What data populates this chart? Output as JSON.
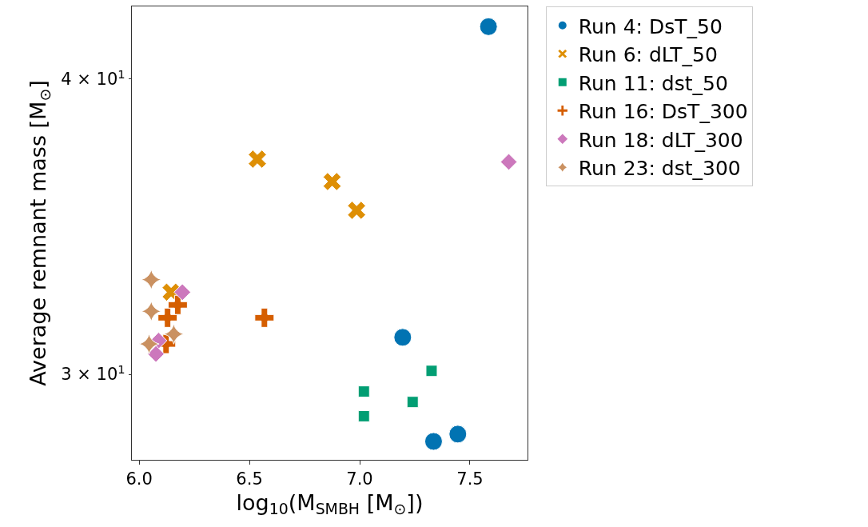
{
  "chart_data": {
    "type": "scatter",
    "xlabel": "log$_{10}$(M$_{SMBH}$ [M$_{⊙}$])",
    "ylabel": "Average remnant mass [M$_{⊙}$]",
    "xlim": [
      5.967,
      7.761
    ],
    "xticks": [
      {
        "value": 6,
        "label": "6.0"
      },
      6.5,
      {
        "value": 7,
        "label": "7.0"
      },
      7.5
    ],
    "ylim": [
      27.6,
      42.94
    ],
    "log": "y",
    "yticks": [
      {
        "value": 30,
        "label": "3 × 10$^{1}$"
      },
      {
        "value": 40,
        "label": "4 × 10$^{1}$"
      }
    ],
    "grid": false,
    "legend": "top right",
    "series": [
      {
        "name": "Run 4: DsT_50",
        "color": "#0173b2",
        "marker": "circle",
        "x": [
          7.584,
          7.195,
          7.335,
          7.445
        ],
        "values": [
          42.1,
          31.1,
          28.1,
          28.3
        ]
      },
      {
        "name": "Run 6: dLT_50",
        "color": "#de8f05",
        "marker": "cross",
        "x": [
          6.536,
          6.875,
          6.986,
          6.145
        ],
        "values": [
          37.0,
          36.2,
          35.2,
          32.5
        ]
      },
      {
        "name": "Run 11: dst_50",
        "color": "#029e73",
        "marker": "square",
        "x": [
          7.326,
          7.019,
          7.24,
          7.019
        ],
        "values": [
          30.1,
          29.5,
          29.2,
          28.8
        ]
      },
      {
        "name": "Run 16: DsT_300",
        "color": "#d55e00",
        "marker": "plus",
        "x": [
          6.129,
          6.175,
          6.568,
          6.122
        ],
        "values": [
          31.7,
          32.1,
          31.7,
          30.9
        ]
      },
      {
        "name": "Run 18: dLT_300",
        "color": "#cc78bc",
        "marker": "diamond",
        "x": [
          7.676,
          6.196,
          6.088,
          6.076
        ],
        "values": [
          36.9,
          32.5,
          31.0,
          30.6
        ]
      },
      {
        "name": "Run 23: dst_300",
        "color": "#ca9161",
        "marker": "star",
        "x": [
          6.055,
          6.055,
          6.157,
          6.045
        ],
        "values": [
          32.9,
          31.9,
          31.2,
          30.9
        ]
      }
    ]
  }
}
